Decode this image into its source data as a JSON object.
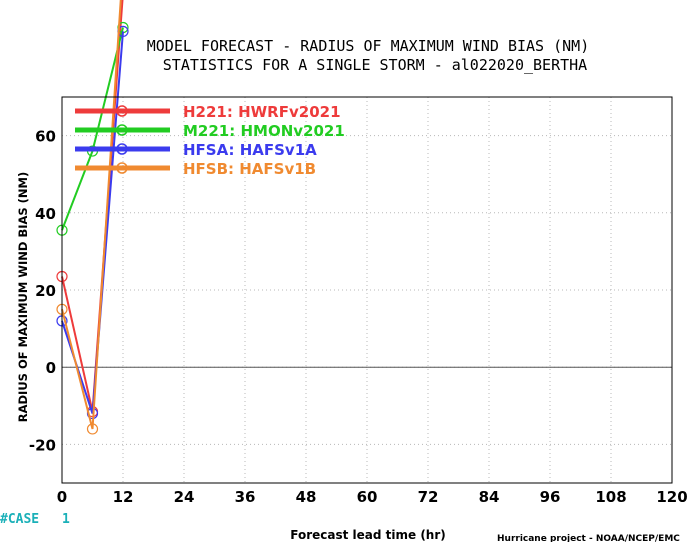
{
  "chart_data": {
    "type": "line",
    "title": "MODEL FORECAST - RADIUS OF MAXIMUM WIND BIAS (NM)",
    "subtitle": "STATISTICS FOR A SINGLE STORM - al022020_BERTHA",
    "xlabel": "Forecast lead time (hr)",
    "ylabel": "RADIUS OF MAXIMUM WIND BIAS (NM)",
    "xlim": [
      0,
      120
    ],
    "ylim": [
      -30,
      70
    ],
    "xticks": [
      0,
      12,
      24,
      36,
      48,
      60,
      72,
      84,
      96,
      108,
      120
    ],
    "yticks": [
      -20,
      0,
      20,
      40,
      60
    ],
    "grid": true,
    "legend_position": "top-left",
    "x": [
      0,
      6,
      12
    ],
    "series": [
      {
        "name": "H221: HWRFv2021",
        "color": "#ee3b3b",
        "values": [
          23.5,
          -11.5,
          97
        ]
      },
      {
        "name": "M221: HMONv2021",
        "color": "#22cc22",
        "values": [
          35.5,
          56,
          88
        ]
      },
      {
        "name": "HFSA: HAFSv1A",
        "color": "#3b3bee",
        "values": [
          12,
          -12,
          87
        ]
      },
      {
        "name": "HFSB: HAFSv1B",
        "color": "#f08a30",
        "values": [
          15,
          -16,
          104
        ]
      }
    ]
  },
  "case_label": "#CASE",
  "case_counts": [
    "1"
  ],
  "footer": "Hurricane project - NOAA/NCEP/EMC"
}
